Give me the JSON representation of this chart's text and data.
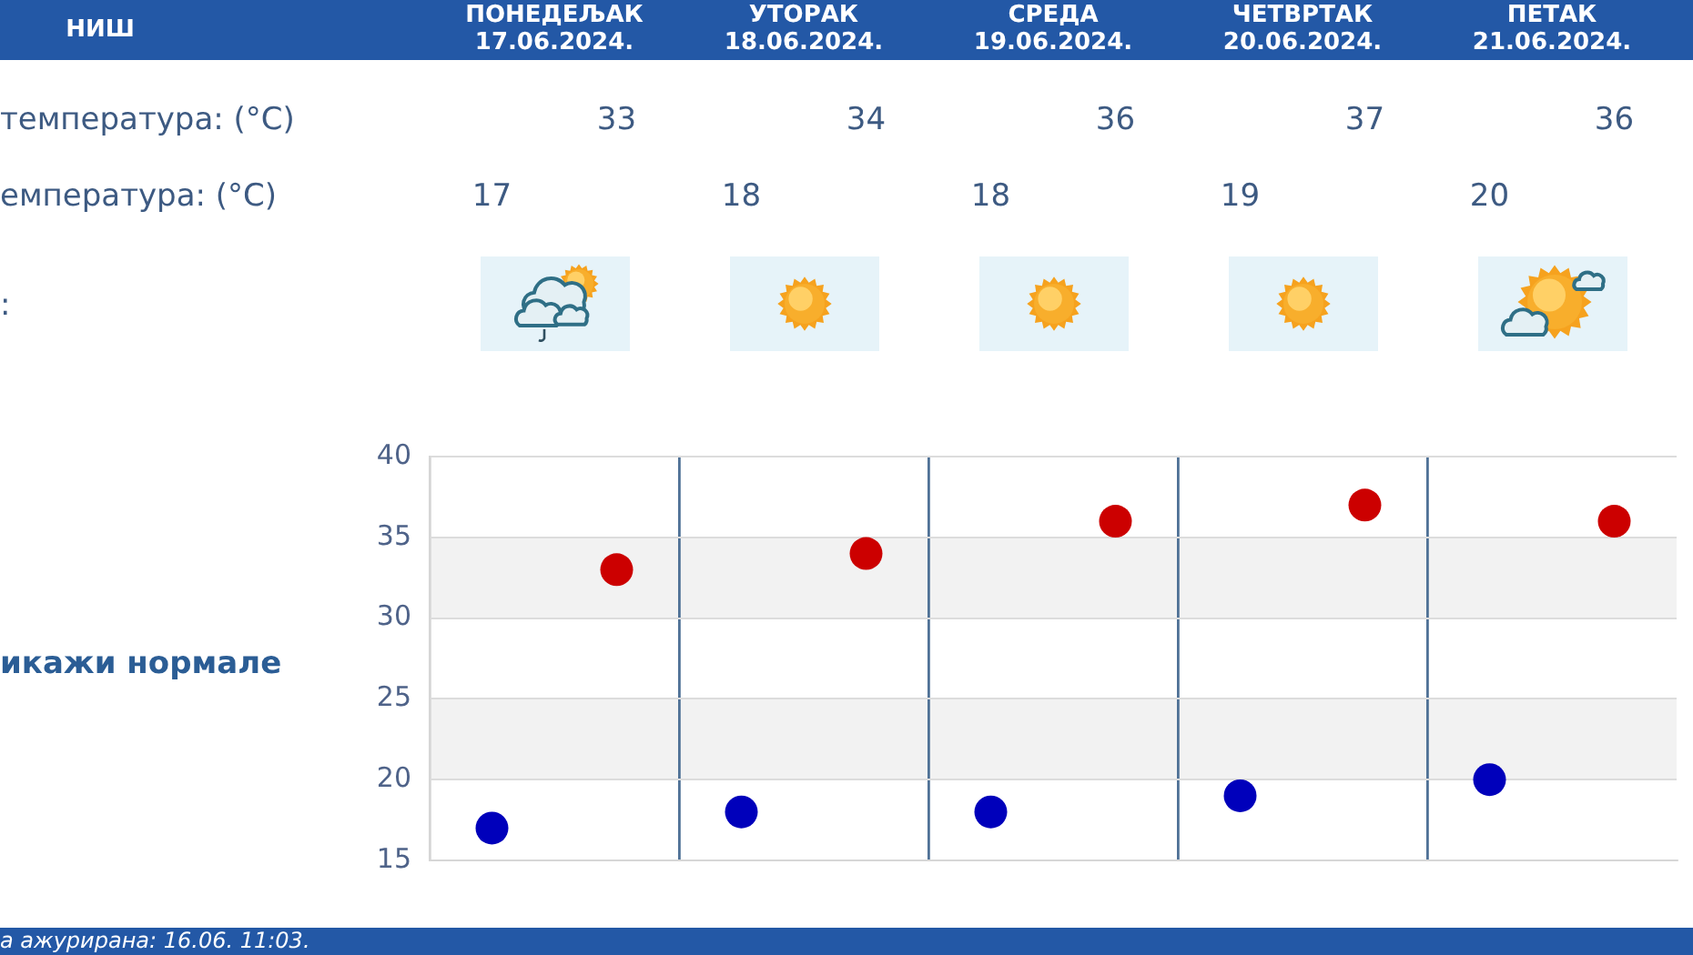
{
  "chart_data": {
    "type": "scatter",
    "title": "НИШ",
    "categories": [
      null,
      null,
      null,
      null,
      null,
      null,
      null,
      null,
      null,
      null
    ],
    "series": [
      {
        "color": "#cc0000",
        "values": [
          null,
          33,
          null,
          34,
          null,
          36,
          null,
          37,
          null,
          36
        ]
      },
      {
        "color": "#0000bb",
        "values": [
          17,
          null,
          18,
          null,
          18,
          null,
          19,
          null,
          20,
          null
        ]
      }
    ],
    "ylim": [
      15,
      40
    ],
    "yticks": [
      15,
      20,
      25,
      30,
      35,
      40
    ],
    "bands": [
      {
        "axis": "y",
        "from": 20,
        "to": 25,
        "color": "#f2f2f2"
      },
      {
        "axis": "y",
        "from": 30,
        "to": 35,
        "color": "#f2f2f2"
      }
    ],
    "grid": true,
    "marker": "circle",
    "data_labels": true,
    "annotations": [
      "ПОНЕДЕЉАК 17.06.2024.",
      "УТОРАК 18.06.2024.",
      "СРЕДА 19.06.2024.",
      "ЧЕТВРТАК 20.06.2024.",
      "ПЕТАК 21.06.2024.",
      "температура: (°C)",
      "емпература: (°C)",
      ":",
      "икажи нормале",
      "а ажурирана: 16.06. 11:03."
    ]
  }
}
